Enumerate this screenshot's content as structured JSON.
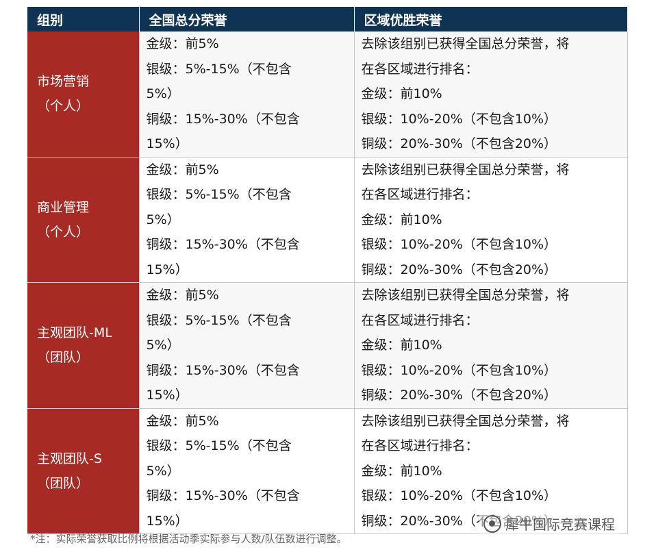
{
  "header": {
    "col_group": "组别",
    "col_national": "全国总分荣誉",
    "col_regional": "区域优胜荣誉"
  },
  "rows": [
    {
      "group_name": "市场营销",
      "group_type": "（个人）",
      "national": [
        "金级：前5%",
        "银级：5%-15%（不包含",
        "5%）",
        "铜级：15%-30%（不包含",
        "15%）"
      ],
      "regional": [
        "去除该组别已获得全国总分荣誉，将",
        "在各区域进行排名：",
        "金级：前10%",
        "银级：10%-20%（不包含10%）",
        "铜级：20%-30%（不包含20%）"
      ]
    },
    {
      "group_name": "商业管理",
      "group_type": "（个人）",
      "national": [
        "金级：前5%",
        "银级：5%-15%（不包含",
        "5%）",
        "铜级：15%-30%（不包含",
        "15%）"
      ],
      "regional": [
        "去除该组别已获得全国总分荣誉，将",
        "在各区域进行排名：",
        "金级：前10%",
        "银级：10%-20%（不包含10%）",
        "铜级：20%-30%（不包含20%）"
      ]
    },
    {
      "group_name": "主观团队-ML",
      "group_type": "（团队）",
      "national": [
        "金级：前5%",
        "银级：5%-15%（不包含",
        "5%）",
        "铜级：15%-30%（不包含",
        "15%）"
      ],
      "regional": [
        "去除该组别已获得全国总分荣誉，将",
        "在各区域进行排名：",
        "金级：前10%",
        "银级：10%-20%（不包含10%）",
        "铜级：20%-30%（不包含20%）"
      ]
    },
    {
      "group_name": "主观团队-S",
      "group_type": "（团队）",
      "national": [
        "金级：前5%",
        "银级：5%-15%（不包含",
        "5%）",
        "铜级：15%-30%（不包含",
        "15%）"
      ],
      "regional": [
        "去除该组别已获得全国总分荣誉，将",
        "在各区域进行排名：",
        "金级：前10%",
        "银级：10%-20%（不包含10%）",
        "铜级：20%-30%（不包含20%）"
      ]
    }
  ],
  "note": "*注：实际荣誉获取比例将根据活动季实际参与人数/队伍数进行调整。",
  "watermark": "犀牛国际竞赛课程",
  "colors": {
    "header_bg": "#0f3352",
    "group_bg": "#a82a24"
  }
}
